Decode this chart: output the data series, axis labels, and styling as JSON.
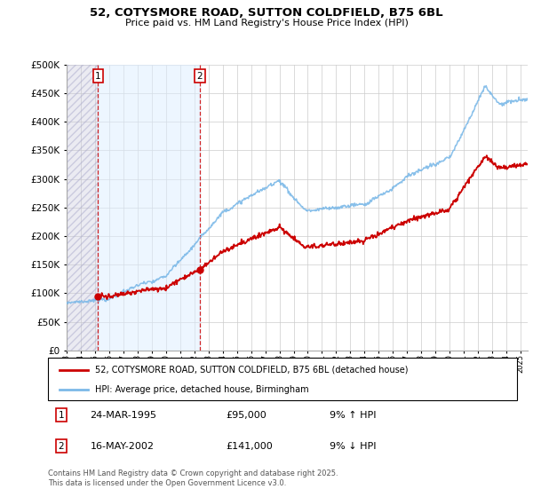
{
  "title_line1": "52, COTYSMORE ROAD, SUTTON COLDFIELD, B75 6BL",
  "title_line2": "Price paid vs. HM Land Registry's House Price Index (HPI)",
  "legend_line1": "52, COTYSMORE ROAD, SUTTON COLDFIELD, B75 6BL (detached house)",
  "legend_line2": "HPI: Average price, detached house, Birmingham",
  "transaction1_date": "24-MAR-1995",
  "transaction1_price": "£95,000",
  "transaction1_hpi": "9% ↑ HPI",
  "transaction2_date": "16-MAY-2002",
  "transaction2_price": "£141,000",
  "transaction2_hpi": "9% ↓ HPI",
  "footer": "Contains HM Land Registry data © Crown copyright and database right 2025.\nThis data is licensed under the Open Government Licence v3.0.",
  "transaction1_year": 1995.22,
  "transaction2_year": 2002.37,
  "transaction1_value": 95000,
  "transaction2_value": 141000,
  "hpi_line_color": "#7cb9e8",
  "price_line_color": "#cc0000",
  "background_color": "#ffffff",
  "ylim": [
    0,
    500000
  ],
  "xlim_start": 1993.0,
  "xlim_end": 2025.5
}
